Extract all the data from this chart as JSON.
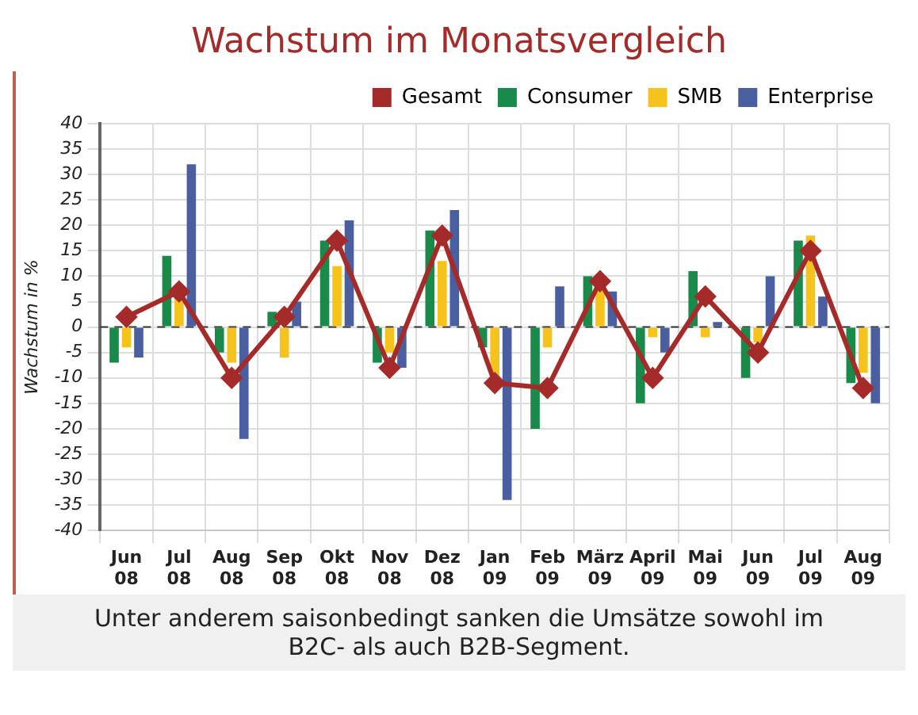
{
  "chart_data": {
    "type": "bar",
    "title": "Wachstum im Monatsvergleich",
    "ylabel": "Wachstum in %",
    "categories": [
      "Jun 08",
      "Jul 08",
      "Aug 08",
      "Sep 08",
      "Okt 08",
      "Nov 08",
      "Dez 08",
      "Jan 09",
      "Feb 09",
      "März 09",
      "April 09",
      "Mai 09",
      "Jun 09",
      "Jul 09",
      "Aug 09"
    ],
    "series": [
      {
        "name": "Gesamt",
        "type": "line",
        "color": "#a52a2a",
        "marker": "diamond",
        "values": [
          2,
          7,
          -10,
          2,
          17,
          -8,
          18,
          -11,
          -12,
          9,
          -10,
          6,
          -5,
          15,
          -12
        ]
      },
      {
        "name": "Consumer",
        "color": "#1a8a4a",
        "values": [
          -7,
          14,
          -5,
          3,
          17,
          -7,
          19,
          -4,
          -20,
          10,
          -15,
          11,
          -10,
          17,
          -11
        ]
      },
      {
        "name": "SMB",
        "color": "#f5c31c",
        "values": [
          -4,
          6,
          -7,
          -6,
          12,
          -5,
          13,
          -10,
          -4,
          8,
          -2,
          -2,
          -3,
          18,
          -9
        ]
      },
      {
        "name": "Enterprise",
        "color": "#4a5fa0",
        "values": [
          -6,
          32,
          -22,
          5,
          21,
          -8,
          23,
          -34,
          8,
          7,
          -5,
          1,
          10,
          6,
          -15
        ]
      }
    ],
    "ylim": [
      -40,
      40
    ],
    "yticks": [
      -40,
      -35,
      -30,
      -25,
      -20,
      -15,
      -10,
      -5,
      0,
      5,
      10,
      15,
      20,
      25,
      30,
      35,
      40
    ],
    "grid": true,
    "legend": "top right",
    "ref_lines": [
      {
        "axis": "y",
        "value": 0,
        "line_style": "dashed",
        "color": "#333333"
      }
    ],
    "annotations": [
      "Unter anderem saisonbedingt sanken die Umsätze sowohl im B2C- als auch B2B-Segment."
    ]
  }
}
